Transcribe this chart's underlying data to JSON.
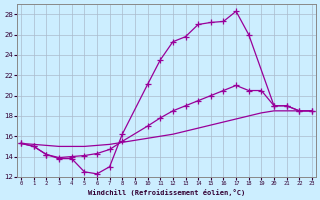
{
  "bg_color": "#cceeff",
  "grid_color": "#aabbcc",
  "line_color": "#990099",
  "xlim": [
    -0.3,
    23.3
  ],
  "ylim": [
    12,
    29
  ],
  "xticks": [
    0,
    1,
    2,
    3,
    4,
    5,
    6,
    7,
    8,
    9,
    10,
    11,
    12,
    13,
    14,
    15,
    16,
    17,
    18,
    19,
    20,
    21,
    22,
    23
  ],
  "yticks": [
    12,
    14,
    16,
    18,
    20,
    22,
    24,
    26,
    28
  ],
  "xlabel": "Windchill (Refroidissement éolien,°C)",
  "line1_x": [
    0,
    1,
    2,
    3,
    4,
    5,
    6,
    7,
    8,
    10,
    11,
    12,
    13,
    14,
    15,
    16,
    17,
    18,
    20,
    21,
    22,
    23
  ],
  "line1_y": [
    15.3,
    15.0,
    14.2,
    13.8,
    13.8,
    12.5,
    12.3,
    13.0,
    16.2,
    21.1,
    23.5,
    25.3,
    25.8,
    27.0,
    27.2,
    27.3,
    28.3,
    26.0,
    19.0,
    19.0,
    18.5,
    18.5
  ],
  "line2_x": [
    0,
    1,
    2,
    3,
    4,
    5,
    6,
    7,
    8,
    10,
    11,
    12,
    13,
    14,
    15,
    16,
    17,
    18,
    19,
    20,
    21,
    22,
    23
  ],
  "line2_y": [
    15.3,
    15.0,
    14.2,
    13.9,
    14.0,
    14.1,
    14.3,
    14.7,
    15.5,
    17.0,
    17.8,
    18.5,
    19.0,
    19.5,
    20.0,
    20.5,
    21.0,
    20.5,
    20.5,
    19.0,
    19.0,
    18.5,
    18.5
  ],
  "line3_x": [
    0,
    1,
    2,
    3,
    4,
    5,
    6,
    7,
    8,
    9,
    10,
    11,
    12,
    13,
    14,
    15,
    16,
    17,
    18,
    19,
    20,
    21,
    22,
    23
  ],
  "line3_y": [
    15.3,
    15.2,
    15.1,
    15.0,
    15.0,
    15.0,
    15.1,
    15.2,
    15.4,
    15.6,
    15.8,
    16.0,
    16.2,
    16.5,
    16.8,
    17.1,
    17.4,
    17.7,
    18.0,
    18.3,
    18.5,
    18.5,
    18.5,
    18.5
  ]
}
